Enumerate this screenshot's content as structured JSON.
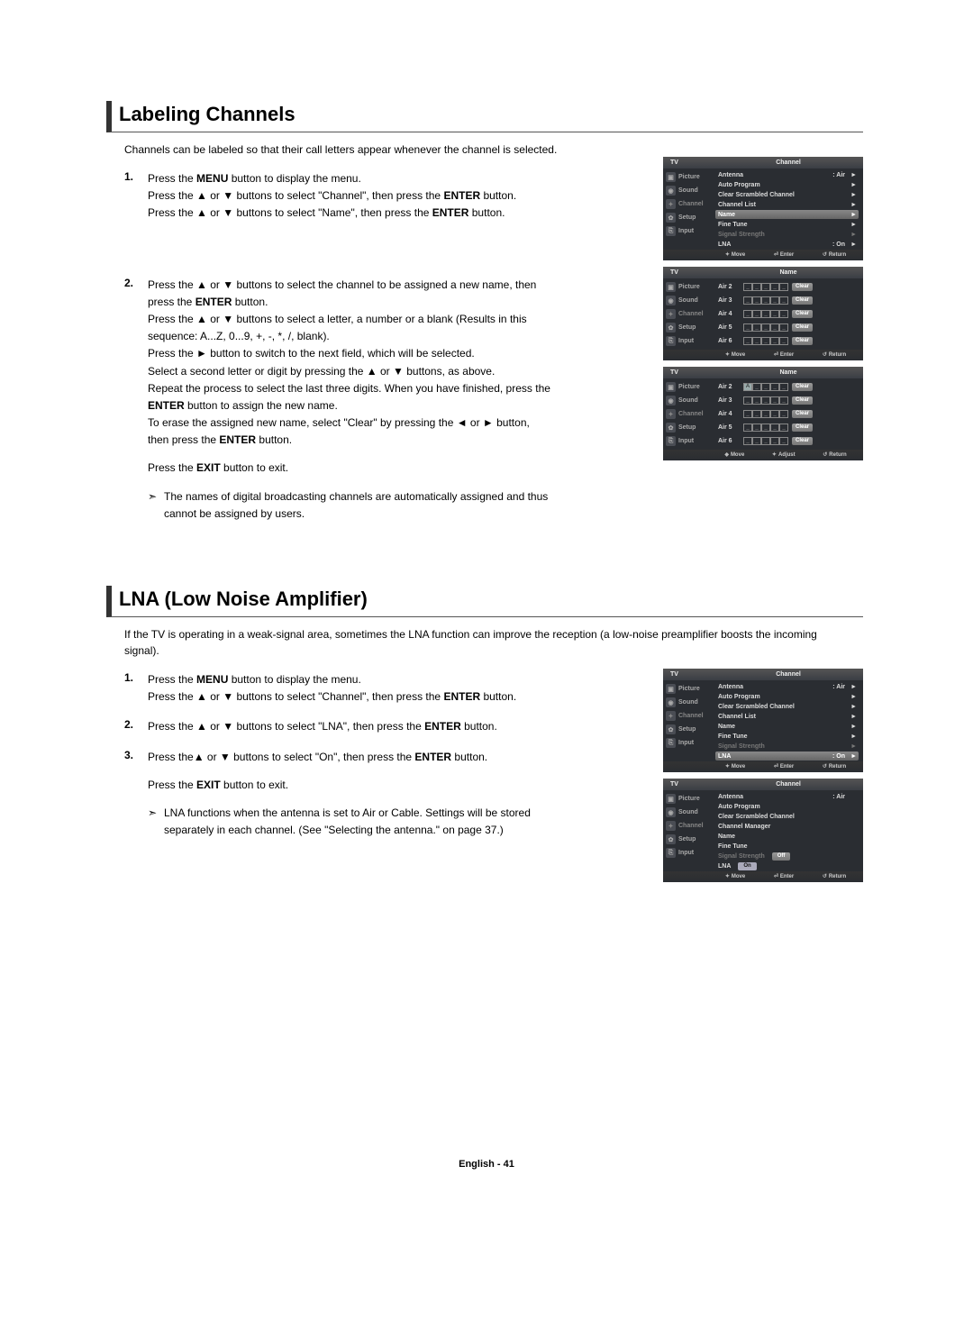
{
  "page_footer": "English - 41",
  "section1": {
    "title": "Labeling Channels",
    "intro": "Channels can be labeled so that their call letters appear whenever the channel is selected.",
    "step1_num": "1.",
    "step1_a": "Press the ",
    "step1_b": "MENU",
    "step1_c": " button to display the menu.",
    "step1_d": "Press the ▲ or ▼ buttons to select \"Channel\", then press the ",
    "step1_e": "ENTER",
    "step1_f": " button.",
    "step1_g": "Press the ▲ or ▼ buttons to select \"Name\", then press the ",
    "step1_h": "ENTER",
    "step1_i": " button.",
    "step2_num": "2.",
    "step2_a": "Press the ▲ or ▼ buttons to select the channel to be assigned a new name, then press the ",
    "step2_b": "ENTER",
    "step2_c": " button.",
    "step2_d": "Press the ▲ or ▼ buttons to select a letter, a number or a blank (Results in this sequence: A...Z, 0...9, +, -, *, /, blank).",
    "step2_e": "Press the ► button to switch to the next field, which will be selected.",
    "step2_f": "Select a second letter or digit by pressing the ▲ or ▼ buttons, as above.",
    "step2_g": "Repeat the process to select the last three digits. When you have finished, press the ",
    "step2_h": "ENTER",
    "step2_i": " button to assign the new name.",
    "step2_j": "To erase the assigned new name, select \"Clear\" by pressing the ◄ or ► button, then press the ",
    "step2_k": "ENTER",
    "step2_l": " button.",
    "step2_m": "Press the ",
    "step2_n": "EXIT",
    "step2_o": " button to exit.",
    "note": "The names of digital broadcasting channels are automatically assigned and thus cannot be assigned by users."
  },
  "section2": {
    "title": "LNA (Low Noise Amplifier)",
    "intro": "If the TV is operating in a weak-signal area, sometimes the LNA function can improve the reception (a low-noise preamplifier boosts the incoming signal).",
    "step1_num": "1.",
    "step1_a": "Press the ",
    "step1_b": "MENU",
    "step1_c": " button to display the menu.",
    "step1_d": "Press the ▲ or ▼ buttons to select \"Channel\", then press the ",
    "step1_e": "ENTER",
    "step1_f": " button.",
    "step2_num": "2.",
    "step2_a": "Press the ▲ or ▼ buttons to select \"LNA\", then press the ",
    "step2_b": "ENTER",
    "step2_c": " button.",
    "step3_num": "3.",
    "step3_a": "Press the▲ or ▼ buttons to select \"On\", then press the ",
    "step3_b": "ENTER",
    "step3_c": " button.",
    "step3_d": "Press the ",
    "step3_e": "EXIT",
    "step3_f": " button to exit.",
    "note": "LNA functions when the antenna is set to Air or Cable. Settings will be stored separately in each channel. (See \"Selecting the antenna.\" on page 37.)"
  },
  "tv": {
    "tv_label": "TV",
    "side": {
      "picture": "Picture",
      "sound": "Sound",
      "channel": "Channel",
      "setup": "Setup",
      "input": "Input"
    },
    "footer": {
      "move": "Move",
      "enter": "Enter",
      "return": "Return",
      "adjust": "Adjust"
    },
    "channel_title": "Channel",
    "name_title": "Name",
    "menu": {
      "antenna": "Antenna",
      "antenna_val": ": Air",
      "auto_program": "Auto Program",
      "clear_scrambled": "Clear Scrambled Channel",
      "channel_list": "Channel List",
      "channel_manager": "Channel Manager",
      "name": "Name",
      "fine_tune": "Fine Tune",
      "signal_strength": "Signal Strength",
      "lna": "LNA",
      "lna_val": ": On",
      "off": "Off",
      "on": "On"
    },
    "channels": [
      "Air 2",
      "Air 3",
      "Air 4",
      "Air 5",
      "Air 6"
    ],
    "dash": "_",
    "a": "A",
    "clear": "Clear"
  }
}
